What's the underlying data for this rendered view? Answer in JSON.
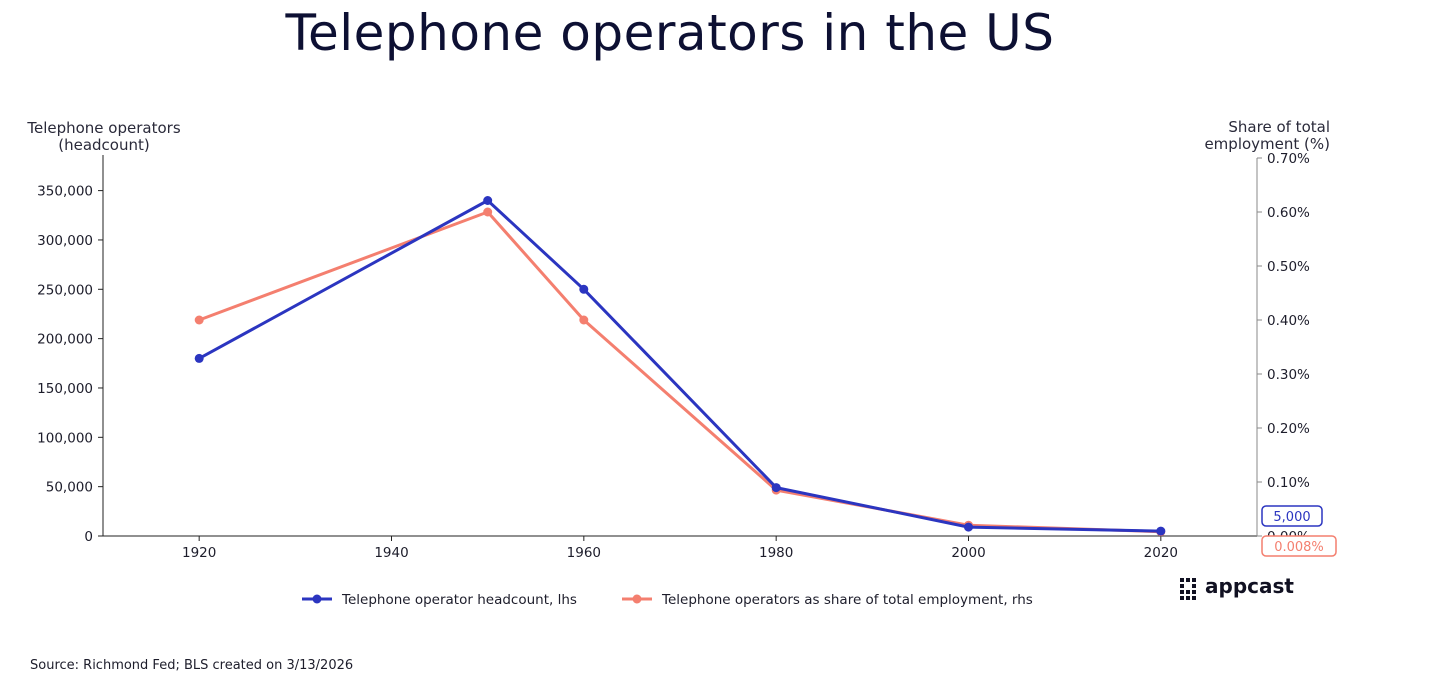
{
  "chart_data": {
    "type": "line",
    "title": "Telephone operators in the US",
    "ylabel_left": [
      "Telephone operators",
      "(headcount)"
    ],
    "ylabel_right": [
      "Share of total",
      "employment (%)"
    ],
    "x_ticks": [
      "1920",
      "1940",
      "1960",
      "1980",
      "2000",
      "2020"
    ],
    "xlim": [
      1910,
      2030
    ],
    "y_left_ticks": [
      "0",
      "50,000",
      "100,000",
      "150,000",
      "200,000",
      "250,000",
      "300,000",
      "350,000"
    ],
    "ylim_left": [
      0,
      380000
    ],
    "y_right_ticks": [
      "0.00%",
      "0.10%",
      "0.20%",
      "0.30%",
      "0.40%",
      "0.50%",
      "0.60%",
      "0.70%"
    ],
    "ylim_right": [
      0,
      0.7
    ],
    "series": [
      {
        "name": "Telephone operator headcount, lhs",
        "axis": "left",
        "color": "#2b35c0",
        "x": [
          1920,
          1950,
          1960,
          1980,
          2000,
          2020
        ],
        "values": [
          180000,
          340000,
          250000,
          49000,
          9000,
          5000
        ]
      },
      {
        "name": "Telephone operators as share of total employment, rhs",
        "axis": "right",
        "color": "#f47f6f",
        "x": [
          1920,
          1950,
          1960,
          1980,
          2000,
          2020
        ],
        "values": [
          0.4,
          0.6,
          0.4,
          0.085,
          0.02,
          0.008
        ]
      }
    ],
    "callouts": [
      {
        "text": "5,000",
        "color": "#2b35c0"
      },
      {
        "text": "0.008%",
        "color": "#f47f6f"
      }
    ],
    "grid": false,
    "legend_position": "bottom"
  },
  "source": "Source: Richmond Fed; BLS created on 3/13/2026",
  "brand": {
    "name": "appcast"
  }
}
